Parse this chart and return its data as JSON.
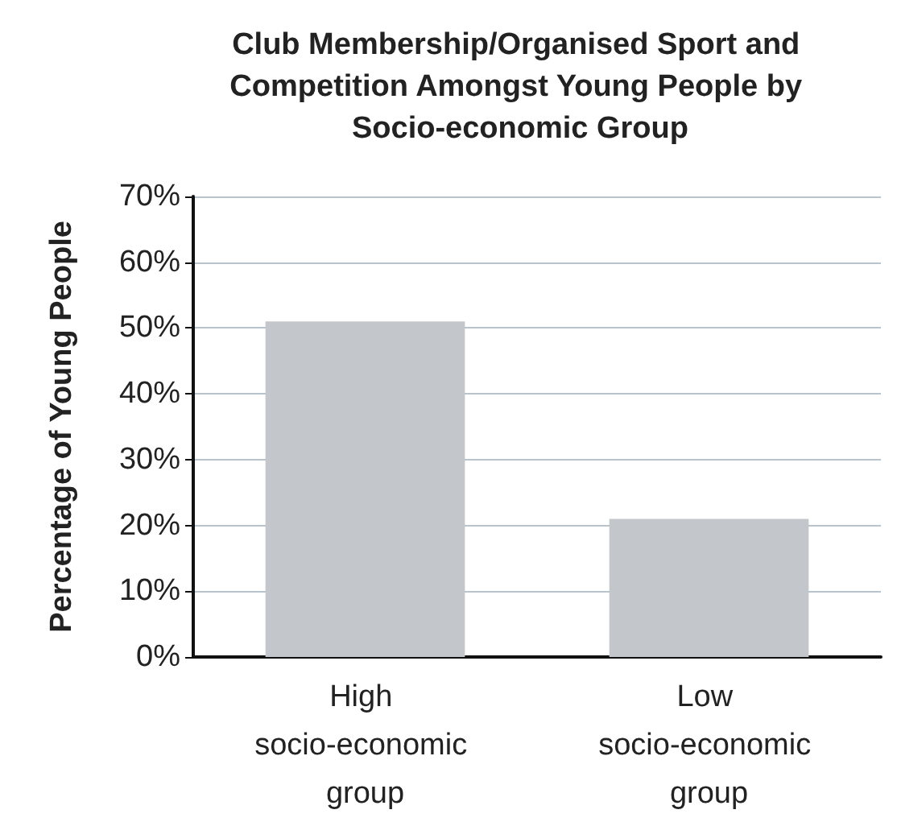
{
  "chart_data": {
    "type": "bar",
    "title": "Club Membership/Organised Sport and Competition Amongst Young People by Socio-economic Group",
    "ylabel": "Percentage of Young People",
    "categories": [
      "High socio-economic group",
      "Low socio-economic group"
    ],
    "values": [
      51,
      21
    ],
    "color": "#c3c6ca",
    "ylim": [
      0,
      70
    ],
    "yticks": [
      {
        "value": 0,
        "label": "0%"
      },
      {
        "value": 10,
        "label": "10%"
      },
      {
        "value": 20,
        "label": "20%"
      },
      {
        "value": 30,
        "label": "30%"
      },
      {
        "value": 40,
        "label": "40%"
      },
      {
        "value": 50,
        "label": "50%"
      },
      {
        "value": 60,
        "label": "60%"
      },
      {
        "value": 70,
        "label": "70%"
      }
    ],
    "grid": "y"
  }
}
